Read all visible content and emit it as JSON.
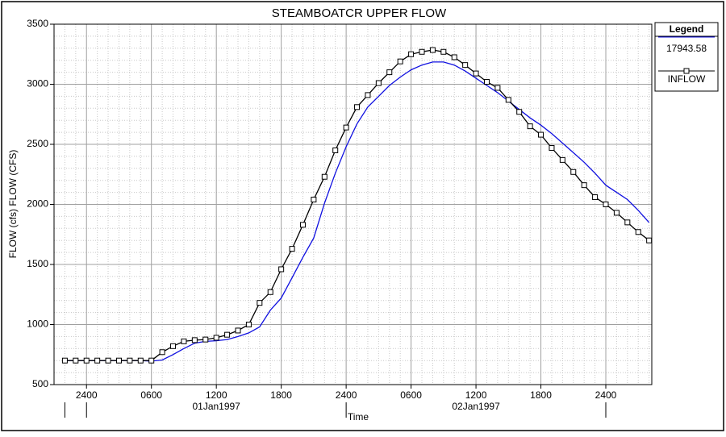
{
  "chart_data": {
    "type": "line",
    "title": "STEAMBOATCR UPPER   FLOW",
    "y_label": "FLOW (cfs) FLOW (CFS)",
    "x_label": "Time",
    "legend_title": "Legend",
    "legend": "right",
    "grid": true,
    "x": [
      -2,
      -1,
      0,
      1,
      2,
      3,
      4,
      5,
      6,
      7,
      8,
      9,
      10,
      11,
      12,
      13,
      14,
      15,
      16,
      17,
      18,
      19,
      20,
      21,
      22,
      23,
      24,
      25,
      26,
      27,
      28,
      29,
      30,
      31,
      32,
      33,
      34,
      35,
      36,
      37,
      38,
      39,
      40,
      41,
      42,
      43,
      44,
      45,
      46,
      47,
      48,
      49,
      50,
      51,
      52
    ],
    "series": [
      {
        "name": "17943.58",
        "color": "#1010e0",
        "marker": false,
        "values": [
          700,
          700,
          700,
          700,
          700,
          700,
          700,
          700,
          695,
          705,
          750,
          800,
          845,
          860,
          865,
          875,
          900,
          930,
          980,
          1120,
          1220,
          1390,
          1560,
          1720,
          2010,
          2260,
          2480,
          2670,
          2810,
          2900,
          2990,
          3060,
          3120,
          3160,
          3185,
          3185,
          3160,
          3110,
          3050,
          2990,
          2930,
          2860,
          2790,
          2720,
          2660,
          2590,
          2510,
          2430,
          2350,
          2260,
          2160,
          2100,
          2040,
          1950,
          1850
        ]
      },
      {
        "name": "INFLOW",
        "color": "#000000",
        "marker": true,
        "values": [
          700,
          700,
          700,
          700,
          700,
          700,
          700,
          700,
          700,
          770,
          820,
          860,
          870,
          875,
          890,
          915,
          950,
          1000,
          1180,
          1270,
          1460,
          1630,
          1830,
          2040,
          2230,
          2450,
          2640,
          2810,
          2910,
          3010,
          3100,
          3190,
          3250,
          3270,
          3285,
          3270,
          3225,
          3160,
          3090,
          3020,
          2970,
          2870,
          2770,
          2650,
          2580,
          2470,
          2370,
          2270,
          2160,
          2060,
          2000,
          1930,
          1850,
          1770,
          1700
        ]
      }
    ],
    "xlim": [
      -3,
      52.25
    ],
    "xticks": [
      {
        "value": 0,
        "label": "2400"
      },
      {
        "value": 6,
        "label": "0600"
      },
      {
        "value": 12,
        "label": "1200"
      },
      {
        "value": 18,
        "label": "1800"
      },
      {
        "value": 24,
        "label": "2400"
      },
      {
        "value": 30,
        "label": "0600"
      },
      {
        "value": 36,
        "label": "1200"
      },
      {
        "value": 42,
        "label": "1800"
      },
      {
        "value": 48,
        "label": "2400"
      }
    ],
    "date_labels": [
      {
        "value": 12,
        "label": "01Jan1997"
      },
      {
        "value": 36,
        "label": "02Jan1997"
      }
    ],
    "day_ticks": [
      -2,
      0,
      24,
      48
    ],
    "ylim": [
      500,
      3500
    ],
    "yticks": [
      500,
      1000,
      1500,
      2000,
      2500,
      3000,
      3500
    ]
  }
}
